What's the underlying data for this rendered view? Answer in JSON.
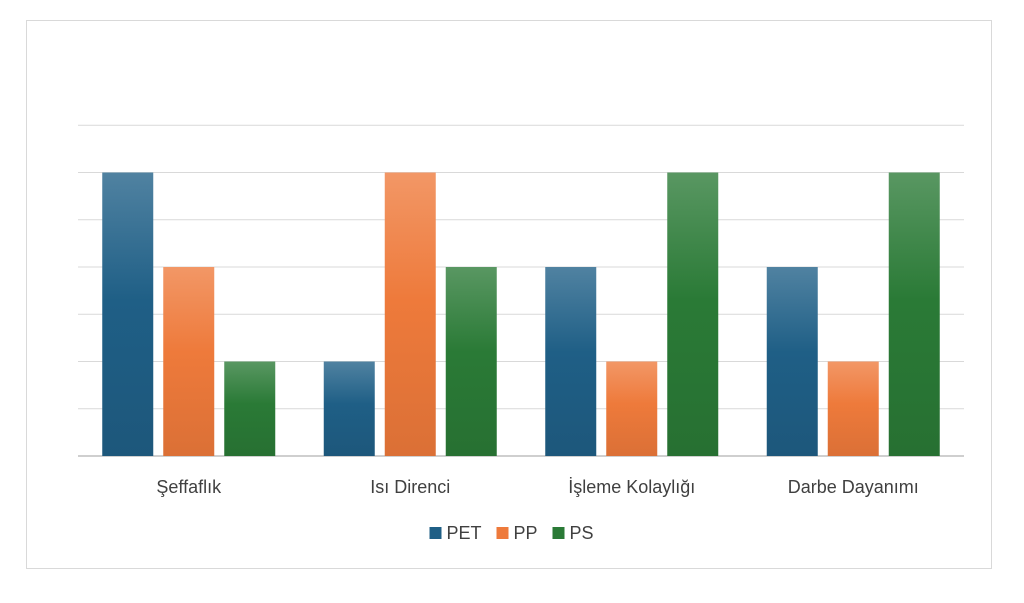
{
  "chart_data": {
    "type": "bar",
    "title": "",
    "xlabel": "",
    "ylabel": "",
    "categories": [
      "Şeffaflık",
      "Isı Direnci",
      "İşleme Kolaylığı",
      "Darbe Dayanımı"
    ],
    "series": [
      {
        "name": "PET",
        "values": [
          3,
          1,
          2,
          2
        ],
        "color": "#1f5f86"
      },
      {
        "name": "PP",
        "values": [
          2,
          3,
          1,
          1
        ],
        "color": "#ee7a3b"
      },
      {
        "name": "PS",
        "values": [
          1,
          2,
          3,
          3
        ],
        "color": "#2a7a36"
      }
    ],
    "ylim": [
      0,
      3.5
    ],
    "y_gridline_step": 0.5,
    "y_axis_labels_visible": false,
    "grid": true,
    "legend": "bottom"
  }
}
